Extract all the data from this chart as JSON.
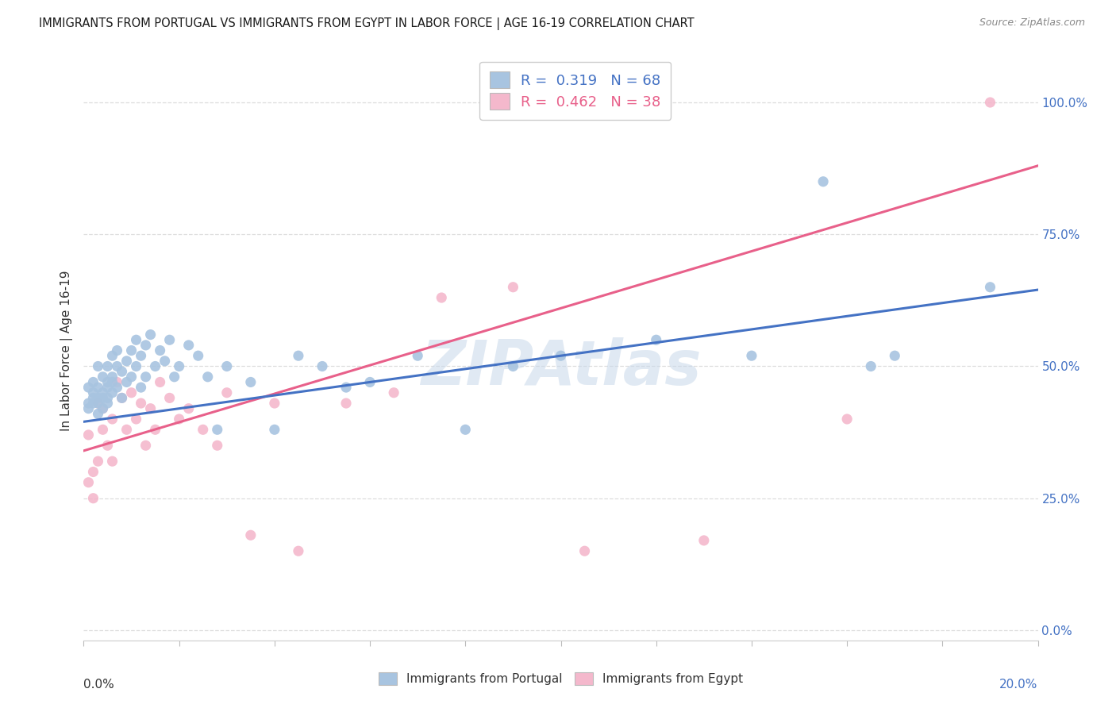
{
  "title": "IMMIGRANTS FROM PORTUGAL VS IMMIGRANTS FROM EGYPT IN LABOR FORCE | AGE 16-19 CORRELATION CHART",
  "source": "Source: ZipAtlas.com",
  "ylabel": "In Labor Force | Age 16-19",
  "ylabel_right_ticks": [
    "0.0%",
    "25.0%",
    "50.0%",
    "75.0%",
    "100.0%"
  ],
  "ylabel_right_vals": [
    0.0,
    0.25,
    0.5,
    0.75,
    1.0
  ],
  "xlim": [
    0.0,
    0.2
  ],
  "ylim": [
    -0.02,
    1.08
  ],
  "color_portugal": "#a8c4e0",
  "color_egypt": "#f4b8cc",
  "line_color_portugal": "#4472c4",
  "line_color_egypt": "#e8608a",
  "R_portugal": 0.319,
  "N_portugal": 68,
  "R_egypt": 0.462,
  "N_egypt": 38,
  "portugal_scatter_x": [
    0.001,
    0.001,
    0.001,
    0.002,
    0.002,
    0.002,
    0.002,
    0.003,
    0.003,
    0.003,
    0.003,
    0.003,
    0.004,
    0.004,
    0.004,
    0.004,
    0.005,
    0.005,
    0.005,
    0.005,
    0.005,
    0.006,
    0.006,
    0.006,
    0.006,
    0.007,
    0.007,
    0.007,
    0.008,
    0.008,
    0.009,
    0.009,
    0.01,
    0.01,
    0.011,
    0.011,
    0.012,
    0.012,
    0.013,
    0.013,
    0.014,
    0.015,
    0.016,
    0.017,
    0.018,
    0.019,
    0.02,
    0.022,
    0.024,
    0.026,
    0.028,
    0.03,
    0.035,
    0.04,
    0.045,
    0.05,
    0.055,
    0.06,
    0.07,
    0.08,
    0.09,
    0.1,
    0.12,
    0.14,
    0.155,
    0.165,
    0.17,
    0.19
  ],
  "portugal_scatter_y": [
    0.43,
    0.46,
    0.42,
    0.44,
    0.47,
    0.43,
    0.45,
    0.41,
    0.44,
    0.46,
    0.43,
    0.5,
    0.44,
    0.42,
    0.48,
    0.45,
    0.46,
    0.43,
    0.5,
    0.47,
    0.44,
    0.48,
    0.52,
    0.45,
    0.47,
    0.5,
    0.53,
    0.46,
    0.49,
    0.44,
    0.51,
    0.47,
    0.48,
    0.53,
    0.55,
    0.5,
    0.52,
    0.46,
    0.54,
    0.48,
    0.56,
    0.5,
    0.53,
    0.51,
    0.55,
    0.48,
    0.5,
    0.54,
    0.52,
    0.48,
    0.38,
    0.5,
    0.47,
    0.38,
    0.52,
    0.5,
    0.46,
    0.47,
    0.52,
    0.38,
    0.5,
    0.52,
    0.55,
    0.52,
    0.85,
    0.5,
    0.52,
    0.65
  ],
  "egypt_scatter_x": [
    0.001,
    0.001,
    0.002,
    0.002,
    0.003,
    0.003,
    0.004,
    0.004,
    0.005,
    0.006,
    0.006,
    0.007,
    0.008,
    0.009,
    0.01,
    0.011,
    0.012,
    0.013,
    0.014,
    0.015,
    0.016,
    0.018,
    0.02,
    0.022,
    0.025,
    0.028,
    0.03,
    0.035,
    0.04,
    0.045,
    0.055,
    0.065,
    0.075,
    0.09,
    0.105,
    0.13,
    0.16,
    0.19
  ],
  "egypt_scatter_y": [
    0.37,
    0.28,
    0.3,
    0.25,
    0.43,
    0.32,
    0.38,
    0.42,
    0.35,
    0.4,
    0.32,
    0.47,
    0.44,
    0.38,
    0.45,
    0.4,
    0.43,
    0.35,
    0.42,
    0.38,
    0.47,
    0.44,
    0.4,
    0.42,
    0.38,
    0.35,
    0.45,
    0.18,
    0.43,
    0.15,
    0.43,
    0.45,
    0.63,
    0.65,
    0.15,
    0.17,
    0.4,
    1.0
  ],
  "watermark": "ZIPAtlas",
  "background_color": "#ffffff",
  "grid_color": "#dddddd",
  "portugal_line_x": [
    0.0,
    0.2
  ],
  "portugal_line_y": [
    0.395,
    0.645
  ],
  "egypt_line_x": [
    0.0,
    0.2
  ],
  "egypt_line_y": [
    0.34,
    0.88
  ]
}
